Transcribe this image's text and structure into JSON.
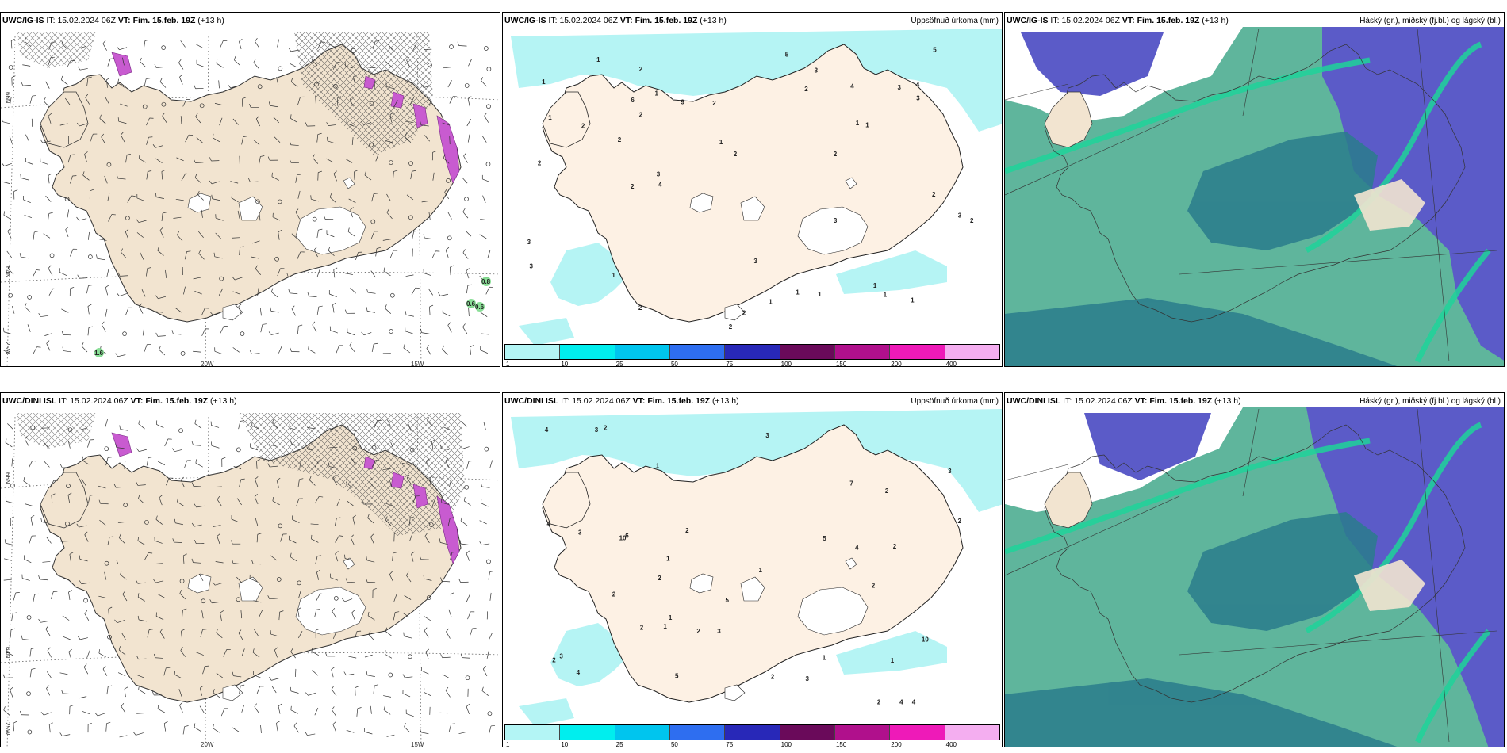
{
  "panels": [
    {
      "id": "p1",
      "model": "UWC/IG-IS",
      "it_label": "IT:",
      "it": "15.02.2024 06Z",
      "vt_label": "VT:",
      "vt": "Fim. 15.feb. 19Z",
      "lead": "(+13 h)",
      "right": ""
    },
    {
      "id": "p2",
      "model": "UWC/IG-IS",
      "it_label": "IT:",
      "it": "15.02.2024 06Z",
      "vt_label": "VT:",
      "vt": "Fim. 15.feb. 19Z",
      "lead": "(+13 h)",
      "right": "Uppsöfnuð úrkoma (mm)"
    },
    {
      "id": "p3",
      "model": "UWC/IG-IS",
      "it_label": "IT:",
      "it": "15.02.2024 06Z",
      "vt_label": "VT:",
      "vt": "Fim. 15.feb. 19Z",
      "lead": "(+13 h)",
      "right": "Háský (gr.), miðský (fj.bl.) og lágský (bl.)"
    },
    {
      "id": "p4",
      "model": "UWC/DINI ISL",
      "it_label": "IT:",
      "it": "15.02.2024 06Z",
      "vt_label": "VT:",
      "vt": "Fim. 15.feb. 19Z",
      "lead": "(+13 h)",
      "right": ""
    },
    {
      "id": "p5",
      "model": "UWC/DINI ISL",
      "it_label": "IT:",
      "it": "15.02.2024 06Z",
      "vt_label": "VT:",
      "vt": "Fim. 15.feb. 19Z",
      "lead": "(+13 h)",
      "right": "Uppsöfnuð úrkoma (mm)"
    },
    {
      "id": "p6",
      "model": "UWC/DINI ISL",
      "it_label": "IT:",
      "it": "15.02.2024 06Z",
      "vt_label": "VT:",
      "vt": "Fim. 15.feb. 19Z",
      "lead": "(+13 h)",
      "right": "Háský (gr.), miðský (fj.bl.) og lágský (bl.)"
    }
  ],
  "wind_map": {
    "lon_labels": [
      "20W",
      "15W"
    ],
    "lat_labels": [
      "66N",
      "64N",
      "25W"
    ],
    "marks_top": [
      "0.8",
      "0.6",
      "0.6",
      "1.6"
    ]
  },
  "precip_legend": {
    "labels": [
      "1",
      "10",
      "25",
      "50",
      "75",
      "100",
      "150",
      "200",
      "400"
    ],
    "colors": [
      "#b3f5f5",
      "#00eeee",
      "#00c5ee",
      "#2e6ef0",
      "#2828b8",
      "#6a0a5a",
      "#b0108c",
      "#ee1ab8",
      "#f4aef0"
    ]
  },
  "precip_values_top": [
    "1",
    "2",
    "2",
    "2",
    "3",
    "2",
    "3",
    "4",
    "4",
    "2",
    "3",
    "1",
    "1",
    "1",
    "2",
    "2",
    "3",
    "2",
    "1",
    "1",
    "1",
    "2",
    "2",
    "3",
    "4",
    "2",
    "3",
    "3",
    "1",
    "2",
    "3",
    "1",
    "5",
    "2",
    "1",
    "2",
    "9",
    "2",
    "5",
    "3",
    "1",
    "6",
    "1",
    "1",
    "1"
  ],
  "precip_values_bottom": [
    "5",
    "10",
    "3",
    "2",
    "4",
    "1",
    "3",
    "2",
    "1",
    "4",
    "2",
    "3",
    "4",
    "2",
    "1",
    "1",
    "1",
    "2",
    "3",
    "2",
    "4",
    "6",
    "3",
    "2",
    "1",
    "5",
    "2",
    "3",
    "2",
    "2",
    "1",
    "2",
    "4",
    "10",
    "7",
    "4",
    "3",
    "2",
    "2",
    "5"
  ],
  "colors": {
    "land": "#f2e4d0",
    "land_light": "#fdf1e4",
    "cyan": "#b5f4f4",
    "cloud_high": "#5b5bc8",
    "cloud_mid": "#2a7c8c",
    "cloud_low": "#5fb59c",
    "cloud_bright": "#1fd39a"
  }
}
